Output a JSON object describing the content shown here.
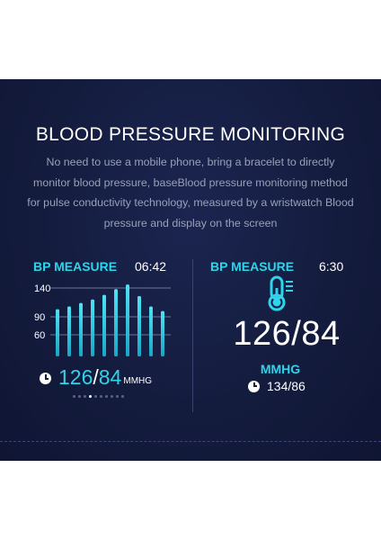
{
  "header": {
    "title": "BLOOD PRESSURE MONITORING",
    "description": "No need to use a mobile phone, bring a bracelet to directly monitor blood pressure, baseBlood pressure monitoring method for pulse conductivity technology, measured by a wristwatch Blood pressure and display on the screen"
  },
  "left_screen": {
    "label": "BP MEASURE",
    "time": "06:42",
    "systolic": "126",
    "slash": "/",
    "diastolic": "84",
    "unit": "MMHG",
    "page_dots": 10,
    "active_dot": 3,
    "icon": "clock-icon"
  },
  "right_screen": {
    "label": "BP MEASURE",
    "time": "6:30",
    "value": "126/84",
    "unit": "MMHG",
    "last_reading": "134/86",
    "icons": [
      "thermometer-icon",
      "clock-icon"
    ]
  },
  "chart_data": {
    "type": "bar",
    "yticks": [
      140,
      90,
      60
    ],
    "values": [
      103,
      108,
      114,
      120,
      128,
      138,
      146,
      126,
      108,
      100
    ]
  },
  "colors": {
    "background": "#141c3e",
    "accent": "#2fd3ea",
    "text": "#ffffff",
    "muted": "#9aa0b8"
  }
}
